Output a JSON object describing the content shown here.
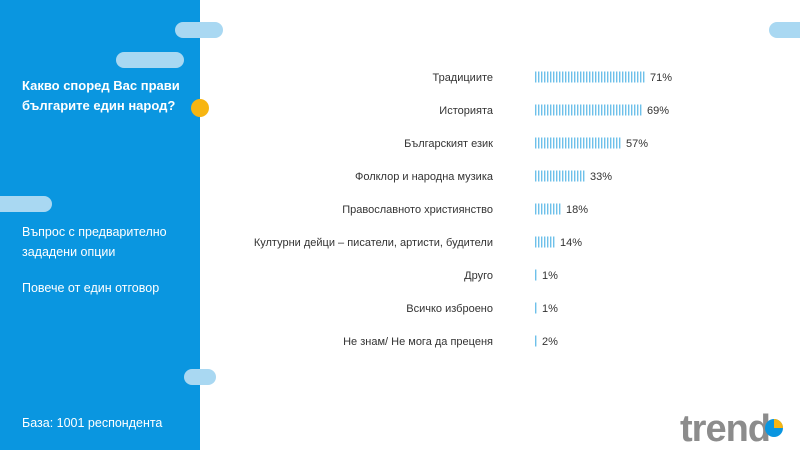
{
  "slide": {
    "question": "Какво според Вас прави българите един народ?",
    "question_type": "Въпрос с предварително зададени опции",
    "multi_answer": "Повече от един отговор",
    "base": "База:  1001 респондента",
    "logo_text": "trend"
  },
  "colors": {
    "sidebar": "#0a96e0",
    "bar": "#6ec0ea",
    "accent_dot": "#f7b511",
    "logo_gray": "#8c8c8c"
  },
  "chart_data": {
    "type": "bar",
    "orientation": "horizontal",
    "categories": [
      "Традициите",
      "Историята",
      "Българският език",
      "Фолклор и народна музика",
      "Православното християнство",
      "Културни дейци – писатели, артисти, будители",
      "Друго",
      "Всичко изброено",
      "Не знам/ Не мога да преценя"
    ],
    "values": [
      71,
      69,
      57,
      33,
      18,
      14,
      1,
      1,
      2
    ],
    "value_labels": [
      "71%",
      "69%",
      "57%",
      "33%",
      "18%",
      "14%",
      "1%",
      "1%",
      "2%"
    ],
    "unit": "%",
    "xlim": [
      0,
      100
    ],
    "grid": false,
    "legend": "none"
  }
}
